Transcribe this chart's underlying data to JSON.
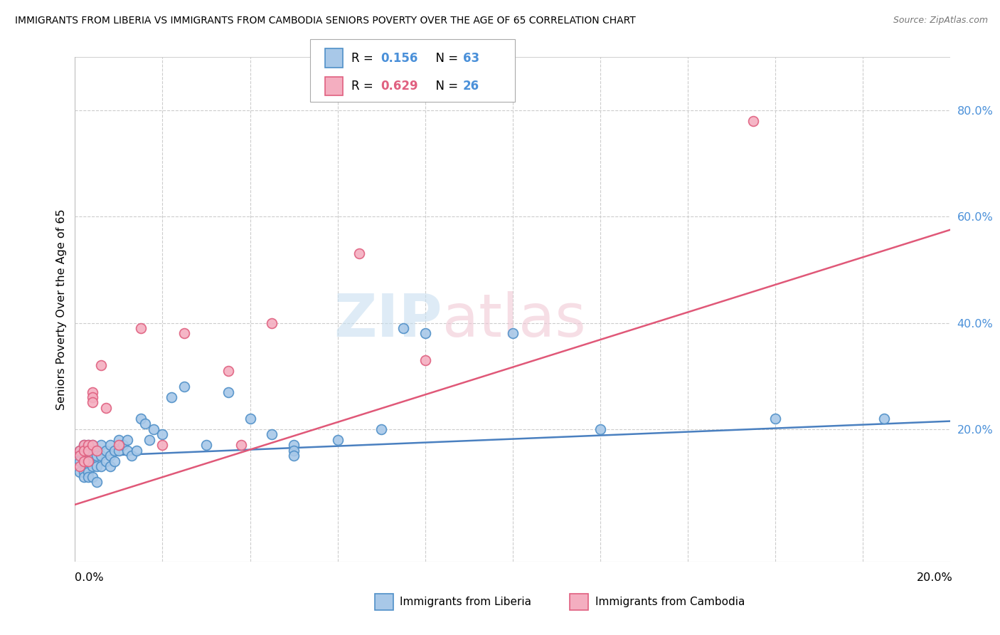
{
  "title": "IMMIGRANTS FROM LIBERIA VS IMMIGRANTS FROM CAMBODIA SENIORS POVERTY OVER THE AGE OF 65 CORRELATION CHART",
  "source": "Source: ZipAtlas.com",
  "ylabel": "Seniors Poverty Over the Age of 65",
  "x_lim": [
    0.0,
    0.2
  ],
  "y_lim": [
    -0.05,
    0.9
  ],
  "color_liberia_fill": "#a8c8e8",
  "color_cambodia_fill": "#f4aec0",
  "color_liberia_edge": "#5090c8",
  "color_cambodia_edge": "#e06080",
  "color_liberia_line": "#4a80c0",
  "color_cambodia_line": "#e05878",
  "color_tick_label": "#4a90d9",
  "grid_color": "#cccccc",
  "background_color": "#ffffff",
  "liberia_trend_x": [
    0.0,
    0.2
  ],
  "liberia_trend_y": [
    0.148,
    0.215
  ],
  "cambodia_trend_x": [
    0.0,
    0.2
  ],
  "cambodia_trend_y": [
    0.058,
    0.575
  ],
  "liberia_x": [
    0.001,
    0.001,
    0.001,
    0.002,
    0.002,
    0.002,
    0.002,
    0.002,
    0.002,
    0.003,
    0.003,
    0.003,
    0.003,
    0.003,
    0.003,
    0.004,
    0.004,
    0.004,
    0.004,
    0.004,
    0.005,
    0.005,
    0.005,
    0.005,
    0.006,
    0.006,
    0.006,
    0.007,
    0.007,
    0.008,
    0.008,
    0.008,
    0.009,
    0.009,
    0.01,
    0.01,
    0.011,
    0.012,
    0.012,
    0.013,
    0.014,
    0.015,
    0.016,
    0.017,
    0.018,
    0.02,
    0.022,
    0.025,
    0.03,
    0.035,
    0.04,
    0.045,
    0.05,
    0.05,
    0.05,
    0.06,
    0.07,
    0.075,
    0.08,
    0.1,
    0.12,
    0.16,
    0.185
  ],
  "liberia_y": [
    0.16,
    0.14,
    0.12,
    0.17,
    0.16,
    0.15,
    0.14,
    0.12,
    0.11,
    0.17,
    0.16,
    0.15,
    0.14,
    0.12,
    0.11,
    0.17,
    0.16,
    0.15,
    0.13,
    0.11,
    0.16,
    0.15,
    0.13,
    0.1,
    0.17,
    0.15,
    0.13,
    0.16,
    0.14,
    0.17,
    0.15,
    0.13,
    0.16,
    0.14,
    0.18,
    0.16,
    0.17,
    0.18,
    0.16,
    0.15,
    0.16,
    0.22,
    0.21,
    0.18,
    0.2,
    0.19,
    0.26,
    0.28,
    0.17,
    0.27,
    0.22,
    0.19,
    0.17,
    0.16,
    0.15,
    0.18,
    0.2,
    0.39,
    0.38,
    0.38,
    0.2,
    0.22,
    0.22
  ],
  "cambodia_x": [
    0.001,
    0.001,
    0.001,
    0.002,
    0.002,
    0.002,
    0.003,
    0.003,
    0.003,
    0.004,
    0.004,
    0.004,
    0.004,
    0.005,
    0.006,
    0.007,
    0.01,
    0.015,
    0.02,
    0.025,
    0.035,
    0.038,
    0.045,
    0.065,
    0.08,
    0.155
  ],
  "cambodia_y": [
    0.16,
    0.15,
    0.13,
    0.17,
    0.16,
    0.14,
    0.17,
    0.16,
    0.14,
    0.27,
    0.26,
    0.25,
    0.17,
    0.16,
    0.32,
    0.24,
    0.17,
    0.39,
    0.17,
    0.38,
    0.31,
    0.17,
    0.4,
    0.53,
    0.33,
    0.78
  ]
}
